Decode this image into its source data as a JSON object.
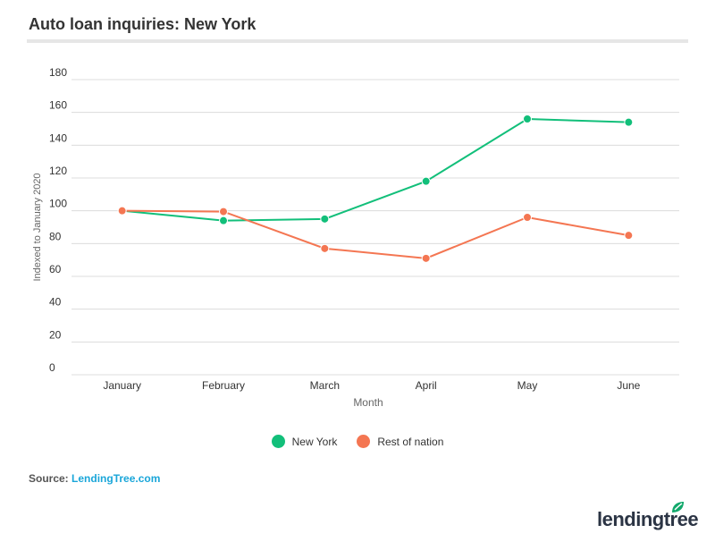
{
  "title": "Auto loan inquiries: New York",
  "source_label": "Source:",
  "source_link": "LendingTree.com",
  "logo_text": "lendingtree",
  "chart_data": {
    "type": "line",
    "title": "Auto loan inquiries: New York",
    "xlabel": "Month",
    "ylabel": "Indexed to January 2020",
    "categories": [
      "January",
      "February",
      "March",
      "April",
      "May",
      "June"
    ],
    "yticks": [
      0,
      20,
      40,
      60,
      80,
      100,
      120,
      140,
      160,
      180
    ],
    "ylim": [
      0,
      180
    ],
    "grid": true,
    "legend": "bottom",
    "series": [
      {
        "name": "New York",
        "color": "#12bf7a",
        "values": [
          100,
          94,
          95,
          118,
          156,
          154
        ]
      },
      {
        "name": "Rest of nation",
        "color": "#f47652",
        "values": [
          100,
          99.5,
          77,
          71,
          96,
          85
        ]
      }
    ]
  }
}
